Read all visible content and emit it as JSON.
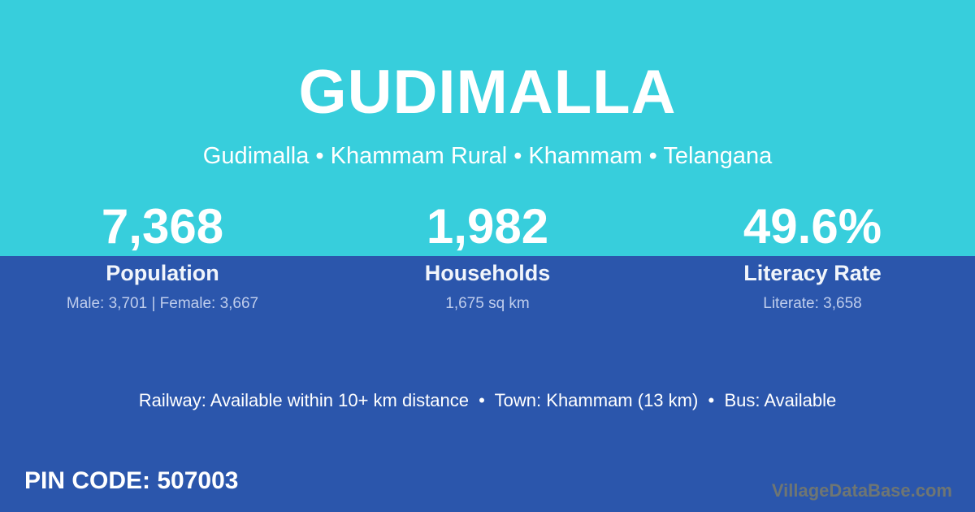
{
  "page": {
    "title": "GUDIMALLA",
    "breadcrumb": "Gudimalla • Khammam Rural • Khammam • Telangana"
  },
  "colors": {
    "top_background": "#37CEDC",
    "bottom_background": "#2B56AC",
    "primary_text": "#FFFFFF",
    "detail_text": "#BFCDEC",
    "watermark_text": "#6F7673"
  },
  "stats": [
    {
      "value": "7,368",
      "label": "Population",
      "detail": "Male: 3,701 | Female: 3,667"
    },
    {
      "value": "1,982",
      "label": "Households",
      "detail": "1,675 sq km"
    },
    {
      "value": "49.6%",
      "label": "Literacy Rate",
      "detail": "Literate: 3,658"
    }
  ],
  "transport_line": "Railway: Available within 10+ km distance  •  Town: Khammam (13 km)  •  Bus: Available",
  "pin_code": "PIN CODE: 507003",
  "watermark": "VillageDataBase.com"
}
